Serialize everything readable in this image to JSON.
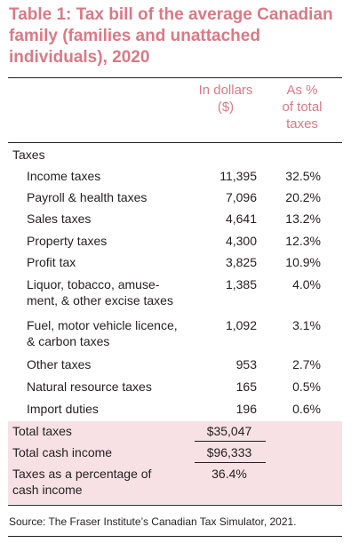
{
  "title": "Table 1: Tax bill of the average Canadian family (families and unattached individuals), 2020",
  "columns": {
    "col1": [
      "In dollars",
      "($)"
    ],
    "col2": [
      "As %",
      "of total",
      "taxes"
    ]
  },
  "section_label": "Taxes",
  "rows": [
    {
      "label": [
        "Income taxes"
      ],
      "dollars": "11,395",
      "percent": "32.5%"
    },
    {
      "label": [
        "Payroll & health taxes"
      ],
      "dollars": "7,096",
      "percent": "20.2%"
    },
    {
      "label": [
        "Sales taxes"
      ],
      "dollars": "4,641",
      "percent": "13.2%"
    },
    {
      "label": [
        "Property taxes"
      ],
      "dollars": "4,300",
      "percent": "12.3%"
    },
    {
      "label": [
        "Profit tax"
      ],
      "dollars": "3,825",
      "percent": "10.9%"
    },
    {
      "label": [
        "Liquor, tobacco, amuse-",
        "ment, & other excise taxes"
      ],
      "dollars": "1,385",
      "percent": "4.0%"
    },
    {
      "label": [
        "Fuel, motor vehicle licence,",
        "& carbon taxes"
      ],
      "dollars": "1,092",
      "percent": "3.1%"
    },
    {
      "label": [
        "Other taxes"
      ],
      "dollars": "953",
      "percent": "2.7%"
    },
    {
      "label": [
        "Natural resource taxes"
      ],
      "dollars": "165",
      "percent": "0.5%"
    },
    {
      "label": [
        "Import duties"
      ],
      "dollars": "196",
      "percent": "0.6%"
    }
  ],
  "totals": [
    {
      "label": [
        "Total taxes"
      ],
      "value": "$35,047"
    },
    {
      "label": [
        "Total cash income"
      ],
      "value": "$96,333"
    },
    {
      "label": [
        "Taxes as a percentage of",
        "cash income"
      ],
      "value": "36.4%"
    }
  ],
  "source": "Source: The Fraser Institute’s Canadian Tax Simulator, 2021.",
  "colors": {
    "accent": "#d97a86",
    "band": "#f7e1e4",
    "text": "#231f20"
  }
}
